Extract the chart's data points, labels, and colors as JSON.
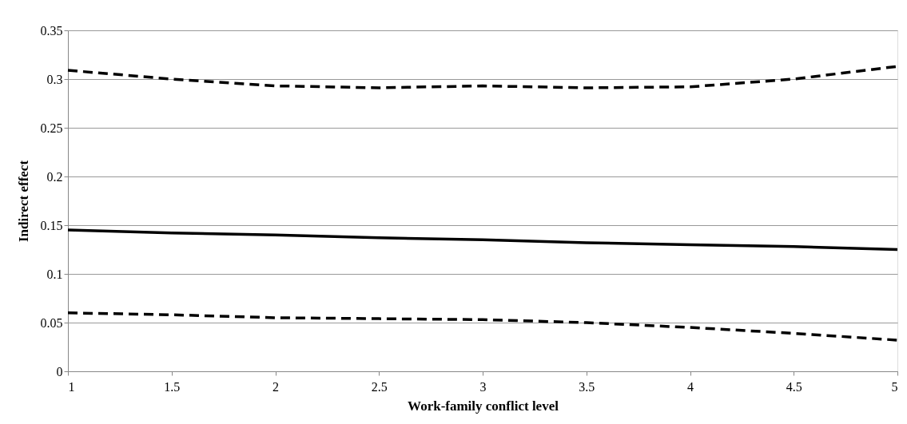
{
  "chart_data": {
    "type": "line",
    "xlabel": "Work-family  conflict level",
    "ylabel": "Indirect  effect",
    "x": [
      1,
      1.5,
      2,
      2.5,
      3,
      3.5,
      4,
      4.5,
      5
    ],
    "series": [
      {
        "color": "#000000",
        "line_style": "dashed",
        "values": [
          0.309,
          0.3,
          0.293,
          0.291,
          0.293,
          0.291,
          0.292,
          0.3,
          0.313
        ]
      },
      {
        "color": "#000000",
        "line_style": "solid",
        "values": [
          0.145,
          0.142,
          0.14,
          0.137,
          0.135,
          0.132,
          0.13,
          0.128,
          0.125
        ]
      },
      {
        "color": "#000000",
        "line_style": "dashed",
        "values": [
          0.06,
          0.058,
          0.055,
          0.054,
          0.053,
          0.05,
          0.045,
          0.039,
          0.032
        ]
      }
    ],
    "xlim": [
      1,
      5
    ],
    "xticks": [
      1,
      1.5,
      2,
      2.5,
      3,
      3.5,
      4,
      4.5,
      5
    ],
    "ylim": [
      0,
      0.35
    ],
    "yticks": [
      0,
      0.05,
      0.1,
      0.15,
      0.2,
      0.25,
      0.3,
      0.35
    ],
    "grid": "y",
    "marker": "none"
  }
}
